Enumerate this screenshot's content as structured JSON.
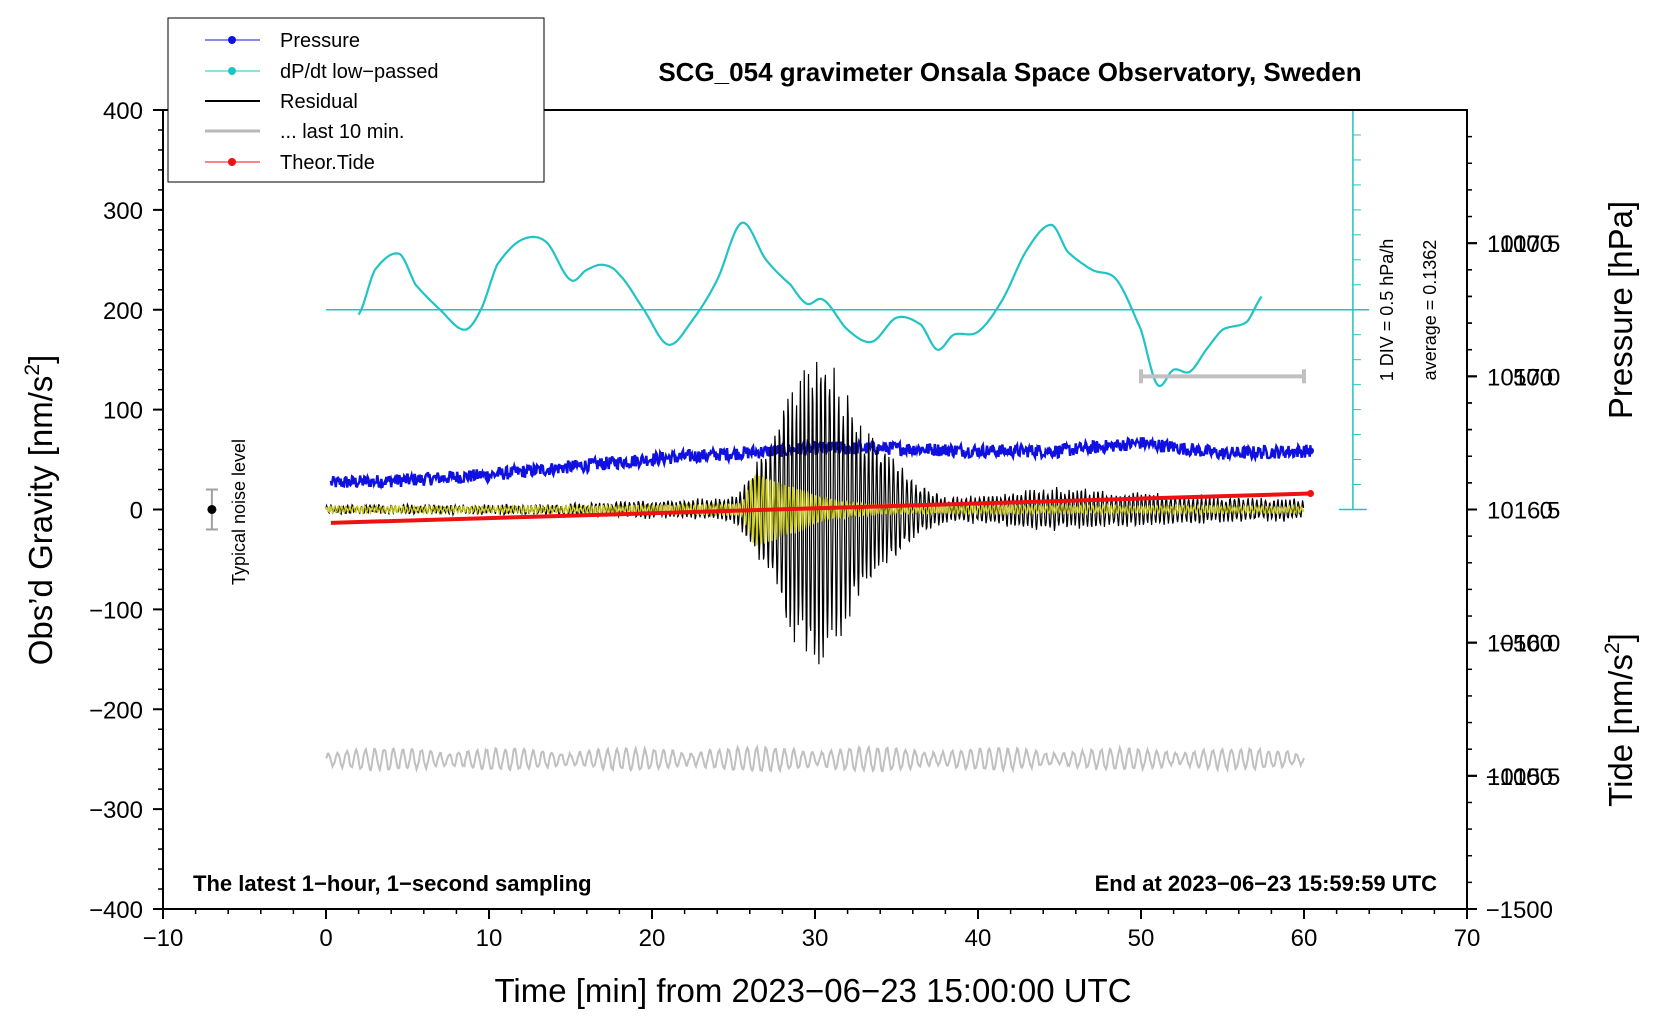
{
  "chart_data": {
    "type": "line",
    "title": "SCG_054 gravimeter Onsala Space Observatory, Sweden",
    "xlabel": "Time [min] from 2023−06−23 15:00:00 UTC",
    "ylabel_left": "Obs’d Gravity [nm/s",
    "ylabel_left_sup": "2",
    "ylabel_left_tail": "]",
    "ylabel_right_pressure": "Pressure [hPa]",
    "ylabel_right_tide": "Tide [nm/s",
    "ylabel_right_tide_sup": "2",
    "ylabel_right_tide_tail": "]",
    "xlim": [
      -10,
      70
    ],
    "ylim_left": [
      -400,
      400
    ],
    "x_ticks": [
      "−10",
      "0",
      "10",
      "20",
      "30",
      "40",
      "50",
      "60",
      "70"
    ],
    "y_ticks_left": [
      "400",
      "300",
      "200",
      "100",
      "0",
      "−100",
      "−200",
      "−300",
      "−400"
    ],
    "pressure_axis": {
      "range": [
        1015.0,
        1018.0
      ],
      "ticks": [
        "1017.5",
        "1017.0",
        "1016.5",
        "1016.0",
        "1015.5"
      ]
    },
    "tide_axis": {
      "range": [
        -1500,
        1500
      ],
      "ticks": [
        "1000",
        "500",
        "0",
        "−500",
        "−1000",
        "−1500"
      ]
    },
    "footer_left": "The latest 1−hour, 1−second sampling",
    "footer_right": "End at 2023−06−23 15:59:59 UTC",
    "noise_label": "Typical noise level",
    "noise_level": {
      "x": -7,
      "center": 0,
      "half_range": 20
    },
    "dpdt_scale_label": "1 DIV = 0.5 hPa/h",
    "dpdt_average_label": "average = 0.1362",
    "dpdt_baseline": 200,
    "last10_bar": {
      "x_start": 50,
      "x_end": 60,
      "tide_level": 500
    },
    "legend": [
      {
        "label": "Pressure",
        "color": "#1010e0",
        "marker": true
      },
      {
        "label": "dP/dt low−passed",
        "color": "#20c4c4",
        "marker": true
      },
      {
        "label": "Residual",
        "color": "#000000",
        "marker": false
      },
      {
        "label": "... last 10 min.",
        "color": "#b8b8b8",
        "marker": false
      },
      {
        "label": "Theor.Tide",
        "color": "#ee1111",
        "marker": true
      }
    ],
    "colors": {
      "pressure": "#1010e0",
      "dpdt": "#20c4c4",
      "residual": "#000000",
      "filtered": "#cccc10",
      "last10": "#c0c0c0",
      "tide": "#ee1111"
    },
    "series": [
      {
        "name": "Pressure",
        "axis": "pressure",
        "x": [
          0.3,
          5,
          10,
          15,
          20,
          25,
          30,
          35,
          40,
          45,
          50,
          55,
          60.4
        ],
        "values": [
          1016.6,
          1016.61,
          1016.63,
          1016.66,
          1016.69,
          1016.71,
          1016.73,
          1016.73,
          1016.72,
          1016.72,
          1016.75,
          1016.71,
          1016.72
        ]
      },
      {
        "name": "dP/dt low-passed",
        "axis": "gravity_div",
        "x": [
          2.0,
          3.0,
          4.5,
          5.5,
          7.0,
          8.5,
          9.5,
          10.5,
          12.0,
          13.5,
          15.0,
          16.0,
          17.0,
          18.0,
          19.5,
          21.0,
          22.5,
          24.0,
          25.5,
          27.0,
          28.5,
          29.5,
          30.5,
          32.0,
          33.5,
          35.0,
          36.5,
          37.5,
          38.5,
          40.0,
          41.5,
          43.0,
          44.5,
          45.5,
          47.0,
          48.5,
          50.0,
          51.0,
          52.0,
          53.0,
          54.0,
          55.0,
          56.5,
          57.5
        ],
        "values": [
          195,
          240,
          256,
          225,
          200,
          180,
          200,
          245,
          270,
          268,
          230,
          240,
          245,
          235,
          200,
          165,
          190,
          230,
          287,
          250,
          225,
          206,
          210,
          180,
          168,
          192,
          185,
          160,
          175,
          178,
          210,
          260,
          285,
          258,
          240,
          230,
          180,
          125,
          140,
          138,
          160,
          180,
          188,
          215
        ]
      },
      {
        "name": "Residual",
        "axis": "gravity",
        "x": [
          0,
          5,
          10,
          15,
          19,
          23,
          25,
          26,
          27,
          28,
          29,
          30,
          31,
          32,
          33,
          34,
          35,
          36,
          38,
          41,
          44,
          48,
          52,
          56,
          60
        ],
        "amplitude": [
          4,
          4,
          4,
          5,
          8,
          10,
          12,
          35,
          65,
          110,
          150,
          165,
          150,
          120,
          85,
          65,
          50,
          30,
          12,
          15,
          22,
          18,
          15,
          12,
          10
        ]
      },
      {
        "name": "Filtered",
        "axis": "gravity",
        "x": [
          0,
          10,
          20,
          25.5,
          26.3,
          27.5,
          29,
          30,
          31,
          33,
          36,
          45,
          60
        ],
        "amplitude": [
          3,
          3,
          4,
          6,
          38,
          30,
          22,
          15,
          10,
          6,
          4,
          4,
          3
        ]
      },
      {
        "name": "... last 10 min.",
        "axis": "gravity",
        "offset": -250,
        "x": [
          0,
          15,
          30,
          45,
          60
        ],
        "amplitude": [
          11,
          10,
          12,
          10,
          10
        ]
      },
      {
        "name": "Theor.Tide",
        "axis": "tide",
        "x": [
          0.3,
          60.4
        ],
        "values": [
          -50,
          60
        ]
      }
    ]
  }
}
